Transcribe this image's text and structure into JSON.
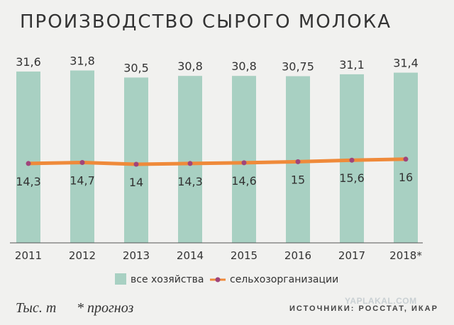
{
  "chart_data": {
    "type": "bar",
    "title": "ПРОИЗВОДСТВО СЫРОГО МОЛОКА",
    "categories": [
      "2011",
      "2012",
      "2013",
      "2014",
      "2015",
      "2016",
      "2017",
      "2018*"
    ],
    "series": [
      {
        "name": "все хозяйства",
        "type": "bar",
        "values": [
          31.6,
          31.8,
          30.5,
          30.8,
          30.8,
          30.75,
          31.1,
          31.4
        ],
        "labels": [
          "31,6",
          "31,8",
          "30,5",
          "30,8",
          "30,8",
          "30,75",
          "31,1",
          "31,4"
        ],
        "color": "#a8d0c2"
      },
      {
        "name": "сельхозорганизации",
        "type": "line",
        "values": [
          14.3,
          14.7,
          14.0,
          14.3,
          14.6,
          15.0,
          15.6,
          16.0
        ],
        "labels": [
          "14,3",
          "14,7",
          "14",
          "14,3",
          "14,6",
          "15",
          "15,6",
          "16"
        ],
        "color": "#ef8a3a",
        "marker_color": "#a0457a"
      }
    ],
    "ylim": [
      0,
      32
    ],
    "grid": false,
    "legend": "bottom"
  },
  "footer": {
    "unit": "Тыс. т",
    "forecast_note": "* прогноз",
    "source": "ИСТОЧНИКИ: РОССТАТ, ИКАР",
    "watermark": "YAPLAKAL.COM"
  },
  "colors": {
    "background": "#f1f1ef",
    "bar": "#a8d0c2",
    "line": "#ef8a3a",
    "marker": "#a0457a",
    "text": "#333333"
  }
}
